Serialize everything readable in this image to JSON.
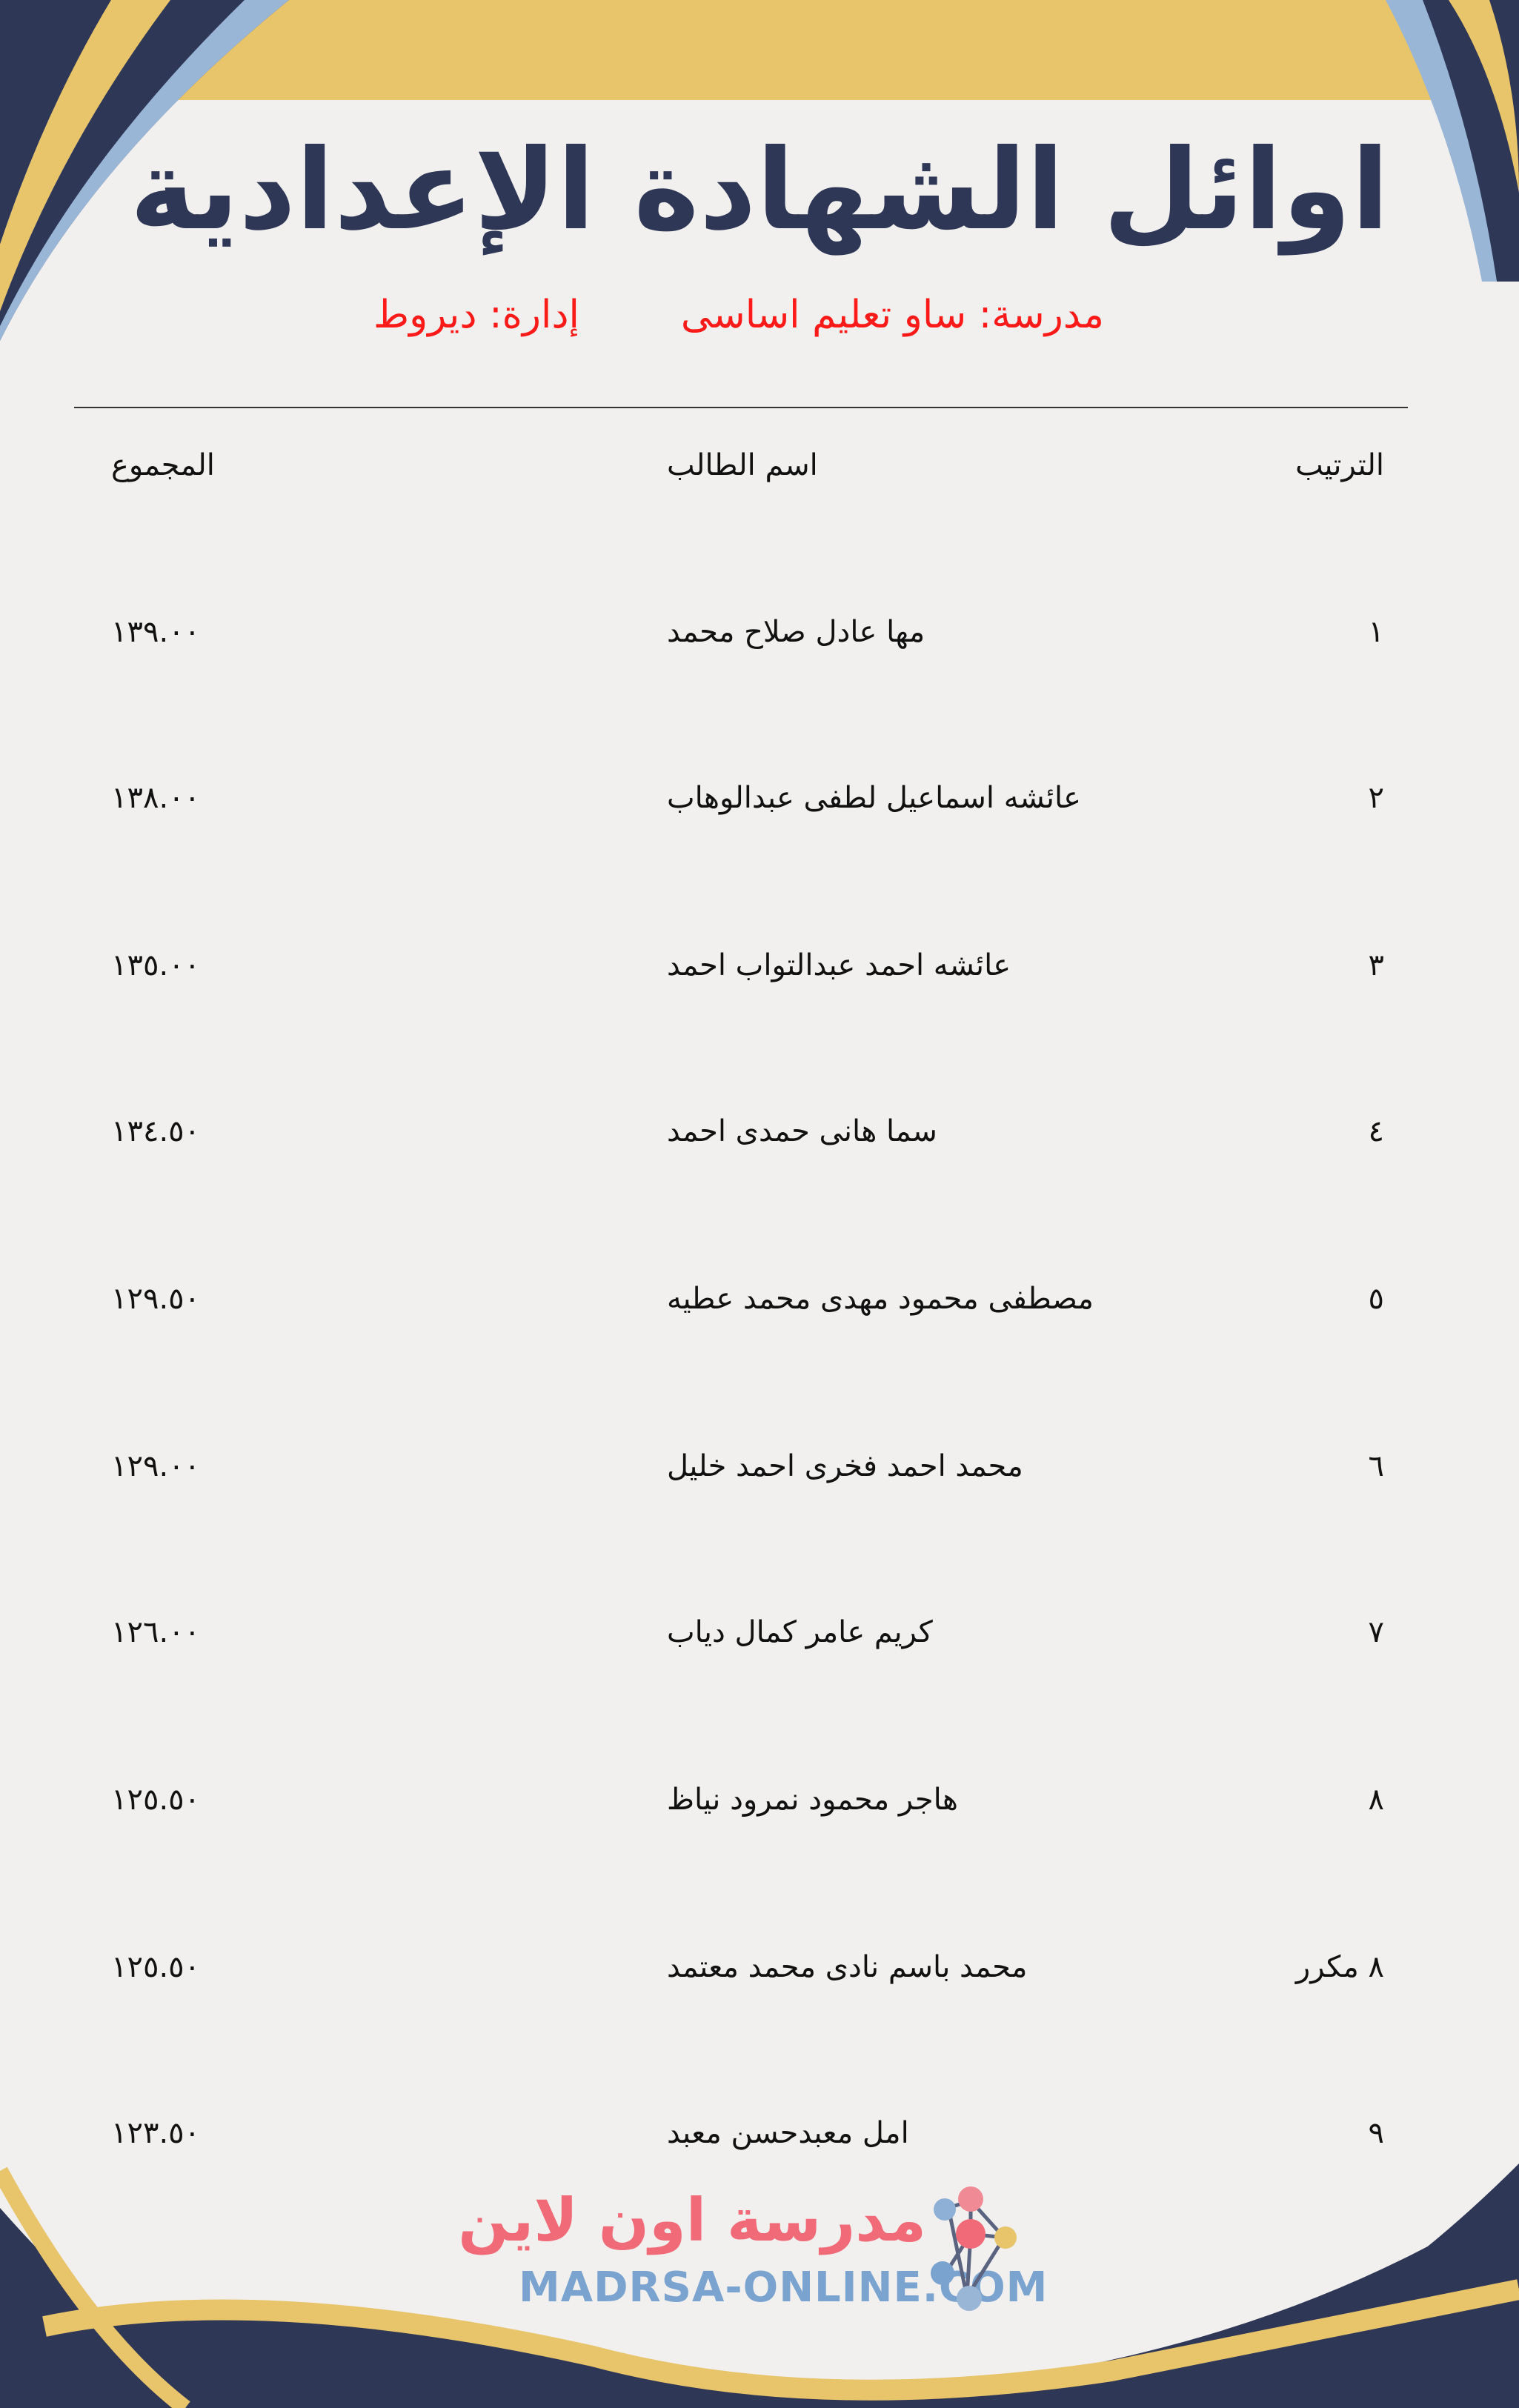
{
  "colors": {
    "navy": "#2f3756",
    "gold": "#e8c46a",
    "accent_red": "#ff1a1a",
    "logo_pink": "#f06a78",
    "logo_blue": "#7aa3cf"
  },
  "title": "اوائل الشهادة الإعدادية",
  "school": "مدرسة: ساو تعليم اساسى",
  "administration": "إدارة: ديروط",
  "table": {
    "headers": {
      "rank": "الترتيب",
      "name": "اسم الطالب",
      "total": "المجموع"
    },
    "rows": [
      {
        "rank": "١",
        "name": "مها عادل صلاح محمد",
        "total": "١٣٩.٠٠"
      },
      {
        "rank": "٢",
        "name": "عائشه اسماعيل لطفى عبدالوهاب",
        "total": "١٣٨.٠٠"
      },
      {
        "rank": "٣",
        "name": "عائشه احمد عبدالتواب احمد",
        "total": "١٣٥.٠٠"
      },
      {
        "rank": "٤",
        "name": "سما هانى حمدى احمد",
        "total": "١٣٤.٥٠"
      },
      {
        "rank": "٥",
        "name": "مصطفى محمود مهدى محمد عطيه",
        "total": "١٢٩.٥٠"
      },
      {
        "rank": "٦",
        "name": "محمد احمد فخرى احمد خليل",
        "total": "١٢٩.٠٠"
      },
      {
        "rank": "٧",
        "name": "كريم عامر كمال دياب",
        "total": "١٢٦.٠٠"
      },
      {
        "rank": "٨",
        "name": "هاجر محمود نمرود نياظ",
        "total": "١٢٥.٥٠"
      },
      {
        "rank": "٨ مكرر",
        "name": "محمد باسم نادى محمد معتمد",
        "total": "١٢٥.٥٠"
      },
      {
        "rank": "٩",
        "name": "امل معبدحسن معبد",
        "total": "١٢٣.٥٠"
      }
    ]
  },
  "logo": {
    "arabic": "مدرسة اون لاين",
    "latin": "MADRSA-ONLINE.COM"
  }
}
